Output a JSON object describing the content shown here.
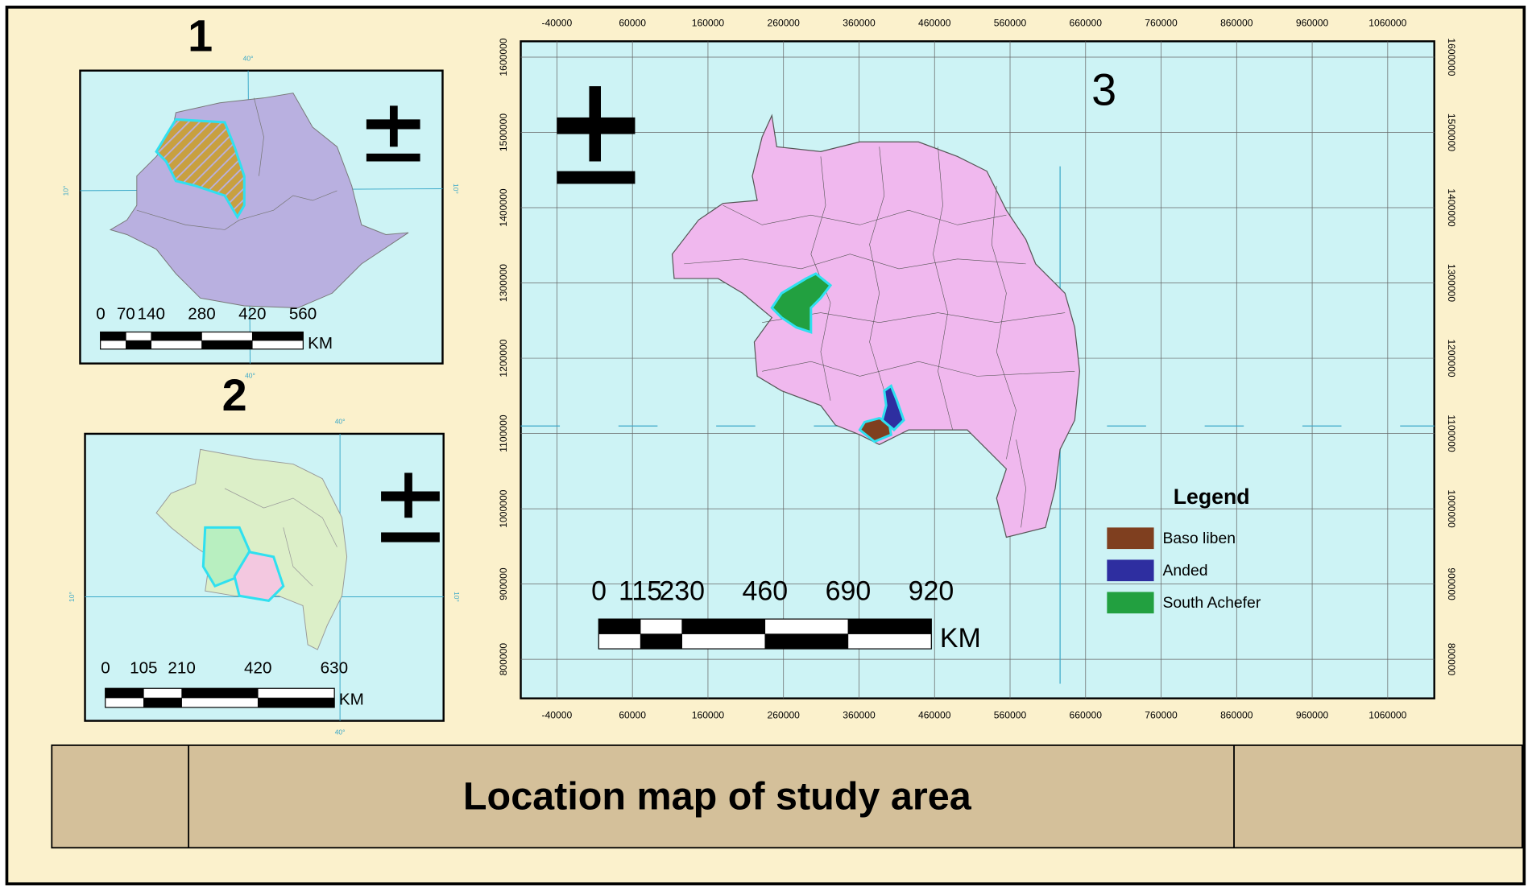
{
  "panels": [
    {
      "label": "1",
      "scale_labels": [
        "0",
        "70",
        "140",
        "280",
        "420",
        "560"
      ],
      "scale_unit": "KM",
      "graticule_labels": [
        "40°",
        "10°",
        "10°",
        "40°"
      ]
    },
    {
      "label": "2",
      "scale_labels": [
        "0",
        "105",
        "210",
        "420",
        "630"
      ],
      "scale_unit": "KM",
      "graticule_labels": [
        "40°",
        "10°",
        "10°",
        "40°"
      ]
    },
    {
      "label": "3",
      "scale_labels": [
        "0",
        "115",
        "230",
        "460",
        "690",
        "920"
      ],
      "scale_unit": "KM",
      "x_ticks": [
        "-40000",
        "60000",
        "160000",
        "260000",
        "360000",
        "460000",
        "560000",
        "660000",
        "760000",
        "860000",
        "960000",
        "1060000"
      ],
      "y_ticks": [
        "800000",
        "900000",
        "1000000",
        "1100000",
        "1200000",
        "1300000",
        "1400000",
        "1500000",
        "1600000"
      ],
      "legend": {
        "title": "Legend",
        "items": [
          {
            "label": "Baso liben",
            "color": "#7f3f1f"
          },
          {
            "label": "Anded",
            "color": "#2e2ea0"
          },
          {
            "label": "South Achefer",
            "color": "#22a040"
          }
        ]
      }
    }
  ],
  "title": "Location map of study area"
}
